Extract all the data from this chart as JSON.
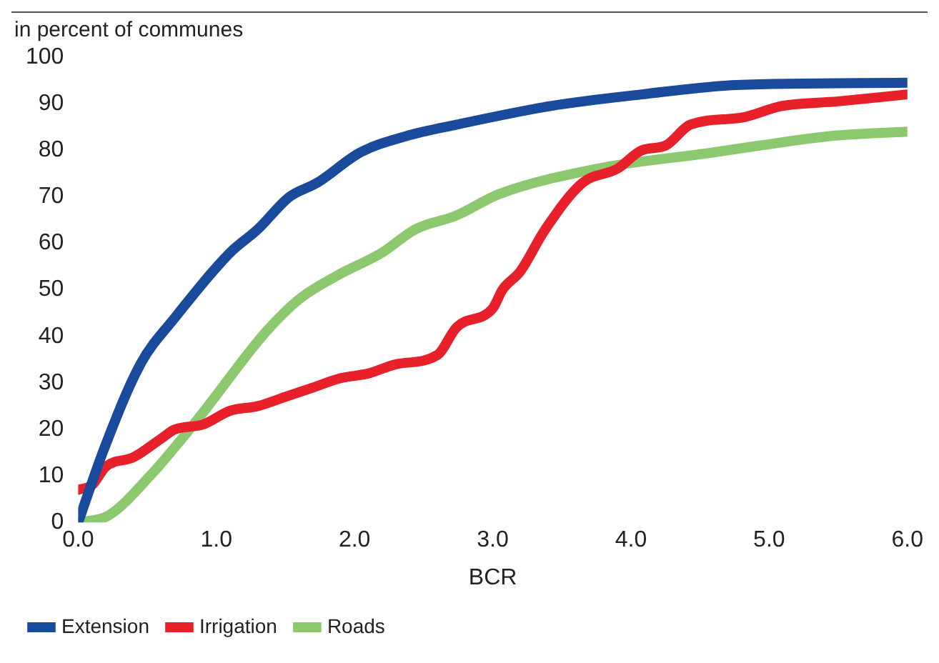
{
  "chart_data": {
    "type": "line",
    "ylabel": "in percent of communes",
    "xlabel": "BCR",
    "xlim": [
      0,
      6
    ],
    "xticks": [
      {
        "value": 0,
        "label": "0.0"
      },
      {
        "value": 1,
        "label": "1.0"
      },
      {
        "value": 2,
        "label": "2.0"
      },
      {
        "value": 3,
        "label": "3.0"
      },
      {
        "value": 4,
        "label": "4.0"
      },
      {
        "value": 5,
        "label": "5.0"
      },
      {
        "value": 6,
        "label": "6.0"
      }
    ],
    "ylim": [
      0,
      100
    ],
    "yticks": [
      0,
      10,
      20,
      30,
      40,
      50,
      60,
      70,
      80,
      90,
      100
    ],
    "grid": false,
    "legend": "bottom",
    "marker": "none",
    "line_style": "solid",
    "series": [
      {
        "name": "Extension",
        "color": "#1a4a9c",
        "x": [
          0,
          0.19,
          0.45,
          0.7,
          1.1,
          1.3,
          1.53,
          1.73,
          2.04,
          2.37,
          2.74,
          3.42,
          4.08,
          4.76,
          6
        ],
        "values": [
          0,
          16,
          34,
          44,
          58,
          63,
          70,
          73,
          79.5,
          83,
          85.5,
          89.5,
          92,
          94,
          94.5
        ]
      },
      {
        "name": "Irrigation",
        "color": "#e8202a",
        "x": [
          0,
          0.1,
          0.2,
          0.4,
          0.6,
          0.7,
          0.9,
          1.1,
          1.3,
          1.5,
          1.7,
          1.9,
          2.1,
          2.3,
          2.6,
          2.74,
          3.0,
          3.07,
          3.2,
          3.38,
          3.65,
          3.9,
          4.08,
          4.25,
          4.43,
          4.8,
          5.09,
          5.5,
          6
        ],
        "values": [
          7,
          8,
          12,
          14,
          18,
          20,
          21,
          24,
          25,
          27,
          29,
          31,
          32,
          34,
          36,
          42,
          46,
          50,
          54,
          63,
          73,
          76,
          80,
          81,
          85.5,
          87,
          89.5,
          90.5,
          92
        ]
      },
      {
        "name": "Roads",
        "color": "#8bc86e",
        "x": [
          0,
          0.22,
          0.52,
          0.86,
          1.36,
          1.6,
          1.87,
          2.2,
          2.44,
          2.74,
          3.04,
          3.75,
          4.59,
          4.93,
          5.43,
          6
        ],
        "values": [
          0,
          1.5,
          10,
          22,
          41,
          48,
          53,
          58,
          63,
          66,
          70.5,
          76,
          79.5,
          81,
          83,
          84
        ]
      }
    ]
  }
}
